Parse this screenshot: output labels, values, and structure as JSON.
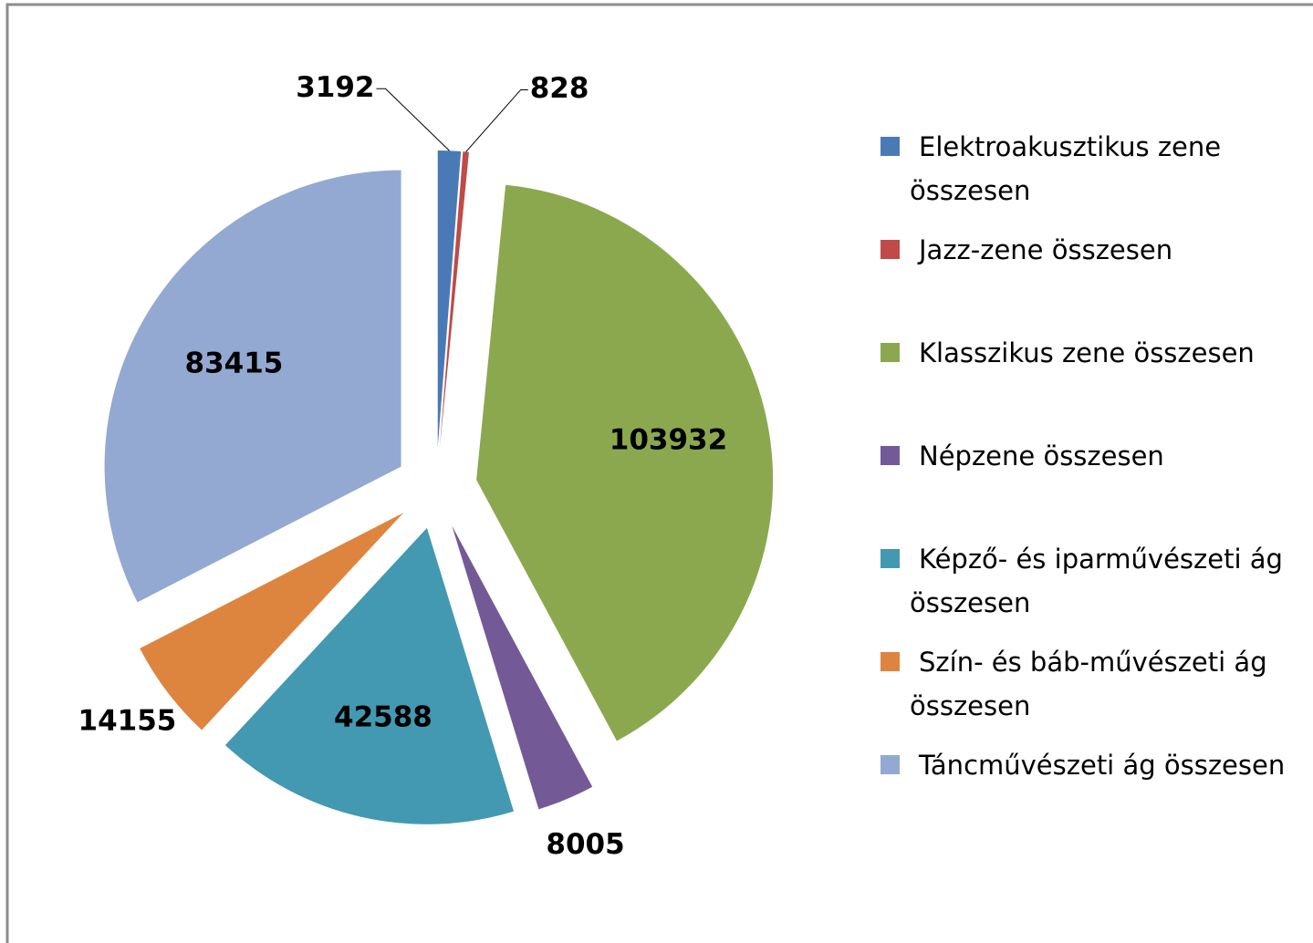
{
  "chart_data": {
    "type": "pie",
    "categories": [
      "Elektroakusztikus zene összesen",
      "Jazz-zene összesen",
      "Klasszikus zene összesen",
      "Népzene összesen",
      "Képző- és iparművészeti ág összesen",
      "Szín- és báb-művészeti ág összesen",
      "Táncművészeti ág összesen"
    ],
    "values": [
      3192,
      828,
      103932,
      8005,
      42588,
      14155,
      83415
    ],
    "colors": [
      "#4a7ab5",
      "#be4b48",
      "#8ba84f",
      "#735a97",
      "#4399b1",
      "#dd853f",
      "#93a9d2"
    ],
    "legend": "right"
  }
}
